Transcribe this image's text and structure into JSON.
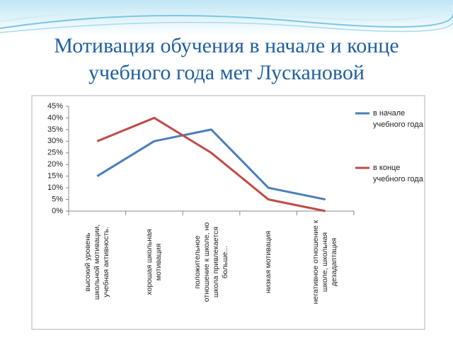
{
  "chart_data": {
    "type": "line",
    "title": "Мотивация обучения в начале и конце учебного года мет Лускановой",
    "categories": [
      "высокий уровень школьной мотивации, учебная активность.",
      "хорошая школьная мотивация",
      "положительное отношение к школе, но школа привлекается больше...",
      "низкая мотивация",
      "негативное отношение к школе, школьная дезадаптация"
    ],
    "series": [
      {
        "name": "в начале учебного года",
        "color": "#4a7ebb",
        "values": [
          15,
          30,
          35,
          10,
          5
        ]
      },
      {
        "name": "в конце учебного года",
        "color": "#be4b48",
        "values": [
          30,
          40,
          25,
          5,
          0
        ]
      }
    ],
    "ylim": [
      0,
      45
    ],
    "yticks": [
      {
        "value": 0,
        "label": "0%"
      },
      {
        "value": 5,
        "label": "5%"
      },
      {
        "value": 10,
        "label": "10%"
      },
      {
        "value": 15,
        "label": "15%"
      },
      {
        "value": 20,
        "label": "20%"
      },
      {
        "value": 25,
        "label": "25%"
      },
      {
        "value": 30,
        "label": "30%"
      },
      {
        "value": 35,
        "label": "35%"
      },
      {
        "value": 40,
        "label": "40%"
      },
      {
        "value": 45,
        "label": "45%"
      }
    ],
    "grid": false,
    "legend": "right"
  }
}
